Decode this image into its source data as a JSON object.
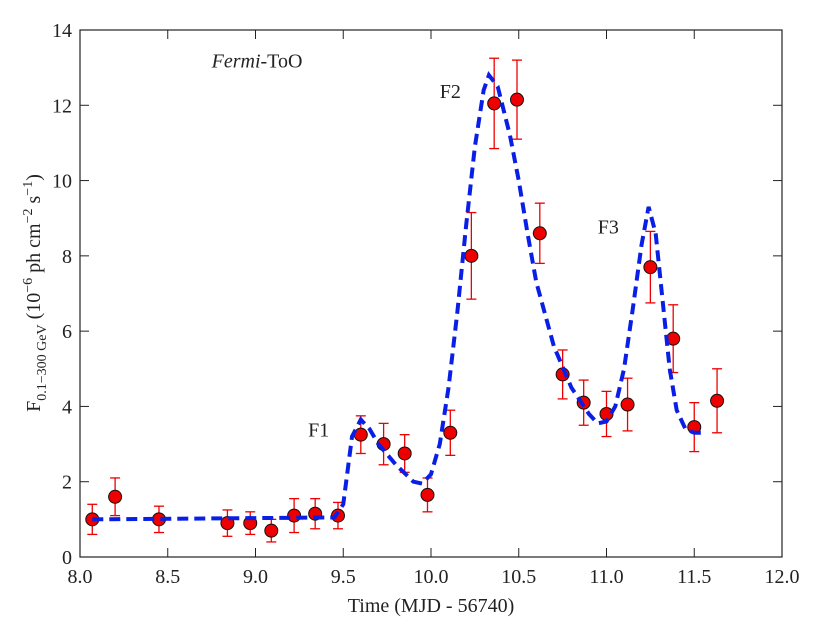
{
  "chart_data": {
    "type": "scatter",
    "xlabel": "Time (MJD - 56740)",
    "ylabel": {
      "main": "F",
      "sub": "0.1−300 GeV",
      "a": " (10",
      "sup1": "−6",
      "b": " ph cm",
      "sup2": "−2",
      "c": " s",
      "sup3": "−1",
      "d": ")"
    },
    "annotations": [
      {
        "text": "F1",
        "x": 9.3,
        "y": 3.2
      },
      {
        "text": "F2",
        "x": 10.05,
        "y": 12.2
      },
      {
        "text": "F3",
        "x": 10.95,
        "y": 8.6
      }
    ],
    "label": {
      "italic": "Fermi",
      "rest": "-ToO",
      "x": 8.75,
      "y": 13.0
    },
    "xlim": [
      8.0,
      12.0
    ],
    "ylim": [
      0,
      14
    ],
    "xticks": [
      {
        "value": 8.0,
        "label": "8.0"
      },
      {
        "value": 8.5,
        "label": "8.5"
      },
      {
        "value": 9.0,
        "label": "9.0"
      },
      {
        "value": 9.5,
        "label": "9.5"
      },
      {
        "value": 10.0,
        "label": "10.0"
      },
      {
        "value": 10.5,
        "label": "10.5"
      },
      {
        "value": 11.0,
        "label": "11.0"
      },
      {
        "value": 11.5,
        "label": "11.5"
      },
      {
        "value": 12.0,
        "label": "12.0"
      }
    ],
    "yticks": [
      0,
      2,
      4,
      6,
      8,
      10,
      12,
      14
    ],
    "series": [
      {
        "color": "#ee0000",
        "x": [
          8.07,
          8.2,
          8.45,
          8.84,
          8.97,
          9.09,
          9.22,
          9.34,
          9.47,
          9.6,
          9.73,
          9.85,
          9.98,
          10.11,
          10.23,
          10.36,
          10.49,
          10.62,
          10.75,
          10.87,
          11.0,
          11.12,
          11.25,
          11.38,
          11.5,
          11.63
        ],
        "values": [
          1.0,
          1.6,
          1.0,
          0.9,
          0.9,
          0.7,
          1.1,
          1.15,
          1.1,
          3.25,
          3.0,
          2.75,
          1.65,
          3.3,
          8.0,
          12.05,
          12.15,
          8.6,
          4.85,
          4.1,
          3.8,
          4.05,
          7.7,
          5.8,
          3.45,
          4.15
        ],
        "errors": [
          0.4,
          0.5,
          0.35,
          0.35,
          0.3,
          0.3,
          0.45,
          0.4,
          0.35,
          0.5,
          0.55,
          0.5,
          0.45,
          0.6,
          1.15,
          1.2,
          1.05,
          0.8,
          0.65,
          0.6,
          0.6,
          0.7,
          0.95,
          0.9,
          0.65,
          0.85
        ]
      },
      {
        "type": "line",
        "color": "#0a1fe6",
        "x": [
          8.07,
          9.45,
          9.5,
          9.55,
          9.6,
          9.65,
          9.7,
          9.8,
          9.9,
          9.95,
          10.0,
          10.05,
          10.1,
          10.15,
          10.2,
          10.25,
          10.3,
          10.33,
          10.38,
          10.45,
          10.5,
          10.55,
          10.6,
          10.7,
          10.8,
          10.9,
          10.95,
          11.0,
          11.05,
          11.1,
          11.15,
          11.2,
          11.24,
          11.28,
          11.32,
          11.36,
          11.4,
          11.45,
          11.5,
          11.55
        ],
        "values": [
          1.0,
          1.05,
          1.4,
          3.2,
          3.65,
          3.4,
          3.0,
          2.45,
          2.0,
          1.95,
          2.2,
          3.0,
          4.5,
          6.5,
          8.8,
          10.9,
          12.4,
          12.8,
          12.5,
          11.2,
          10.0,
          8.6,
          7.3,
          5.6,
          4.5,
          3.8,
          3.55,
          3.6,
          4.0,
          5.0,
          6.6,
          8.3,
          9.3,
          8.6,
          6.8,
          5.0,
          3.9,
          3.4,
          3.3,
          3.3
        ]
      }
    ]
  }
}
